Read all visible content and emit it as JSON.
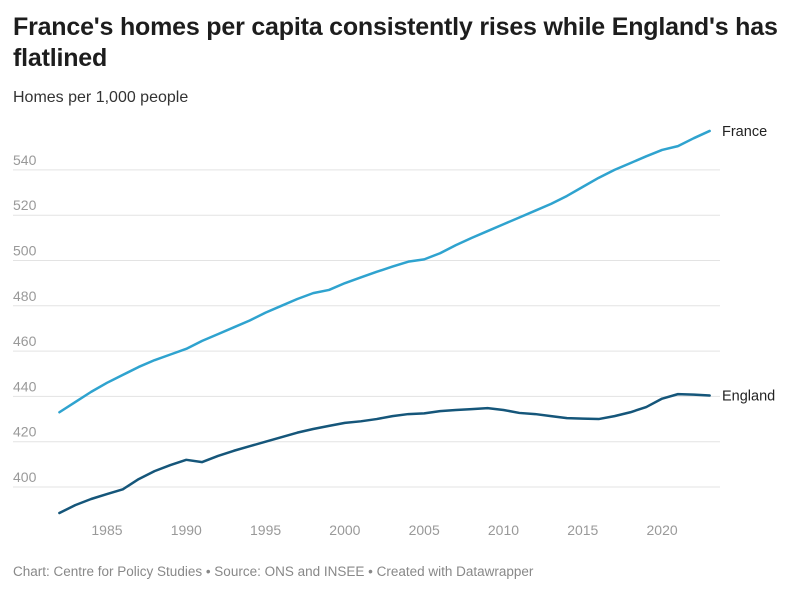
{
  "chart_data": {
    "type": "line",
    "title": "France's homes per capita consistently rises while England's has flatlined",
    "subtitle": "Homes per 1,000 people",
    "xlabel": "",
    "ylabel": "Homes per 1,000 people",
    "x": [
      1982,
      1983,
      1984,
      1985,
      1986,
      1987,
      1988,
      1989,
      1990,
      1991,
      1992,
      1993,
      1994,
      1995,
      1996,
      1997,
      1998,
      1999,
      2000,
      2001,
      2002,
      2003,
      2004,
      2005,
      2006,
      2007,
      2008,
      2009,
      2010,
      2011,
      2012,
      2013,
      2014,
      2015,
      2016,
      2017,
      2018,
      2019,
      2020,
      2021,
      2022,
      2023
    ],
    "xlim": [
      1982,
      2023
    ],
    "ylim": [
      385,
      560
    ],
    "x_ticks": [
      "1985",
      "1990",
      "1995",
      "2000",
      "2005",
      "2010",
      "2015",
      "2020"
    ],
    "y_ticks": [
      "400",
      "420",
      "440",
      "460",
      "480",
      "500",
      "520",
      "540"
    ],
    "grid": true,
    "legend": "direct labels at line ends",
    "series": [
      {
        "name": "France",
        "color": "#2fa3cf",
        "values": [
          433,
          437.5,
          442,
          446,
          449.5,
          453,
          456,
          458.5,
          461,
          464.5,
          467.5,
          470.5,
          473.5,
          477,
          480,
          483,
          485.6,
          487,
          490,
          492.5,
          495,
          497.3,
          499.5,
          500.5,
          503.2,
          506.8,
          510,
          513,
          516,
          519,
          522,
          525,
          528.5,
          532.5,
          536.5,
          540,
          543,
          546,
          548.8,
          550.5,
          554,
          557.2
        ]
      },
      {
        "name": "England",
        "color": "#15567a",
        "values": [
          388.5,
          392,
          394.7,
          396.9,
          399,
          403.5,
          407,
          409.7,
          412,
          411,
          413.7,
          416,
          418,
          420,
          422,
          424,
          425.6,
          427,
          428.3,
          429,
          430,
          431.3,
          432.2,
          432.5,
          433.5,
          434,
          434.4,
          434.8,
          434,
          432.7,
          432.2,
          431.3,
          430.4,
          430.2,
          430,
          431.3,
          433,
          435.3,
          439,
          441,
          440.8,
          440.4
        ]
      }
    ]
  },
  "footer": "Chart: Centre for Policy Studies • Source: ONS and INSEE • Created with Datawrapper"
}
